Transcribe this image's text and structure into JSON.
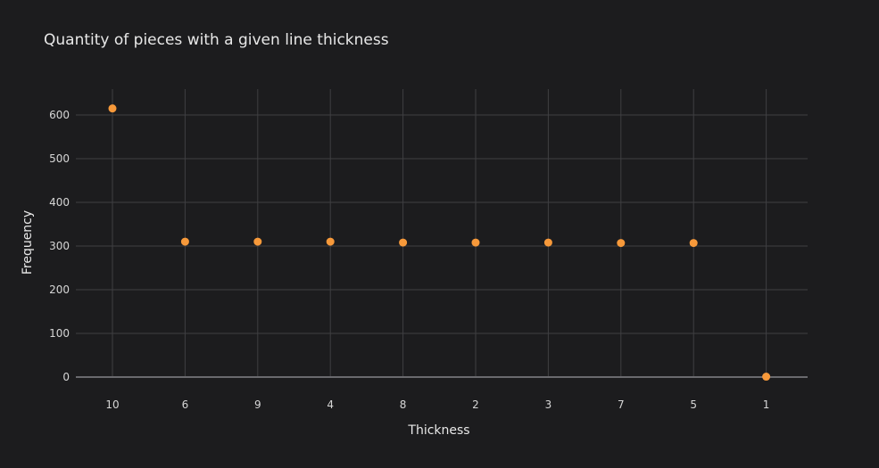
{
  "chart_data": {
    "type": "scatter",
    "title": "Quantity of pieces with a given line thickness",
    "xlabel": "Thickness",
    "ylabel": "Frequency",
    "categories": [
      "10",
      "6",
      "9",
      "4",
      "8",
      "2",
      "3",
      "7",
      "5",
      "1"
    ],
    "values": [
      615,
      310,
      310,
      310,
      308,
      308,
      308,
      307,
      307,
      1
    ],
    "ylim": [
      0,
      660
    ],
    "yticks": [
      0,
      100,
      200,
      300,
      400,
      500,
      600
    ],
    "grid": true,
    "legend": "none",
    "colors": {
      "marker": "#f7993a",
      "background": "#1c1c1e",
      "grid": "#3f3f42"
    }
  }
}
